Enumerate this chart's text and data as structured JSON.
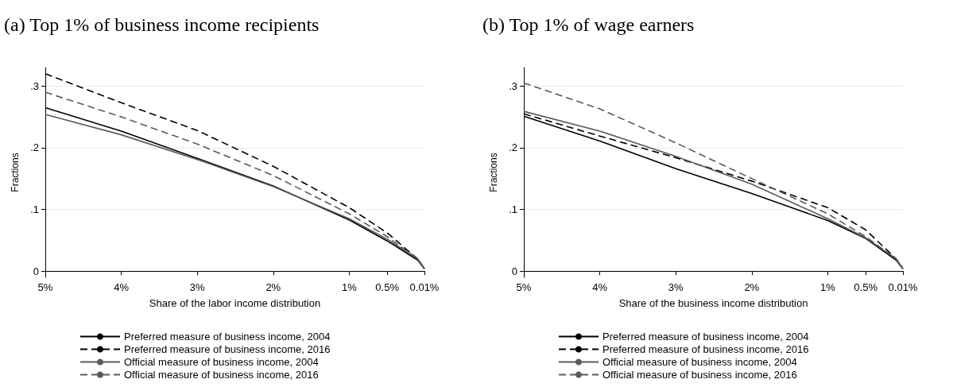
{
  "chart_data": [
    {
      "type": "line",
      "title": "(a) Top 1% of business income recipients",
      "xlabel": "Share of the labor income distribution",
      "ylabel": "Fractions",
      "x": [
        5,
        4,
        3,
        2,
        1,
        0.5,
        0.1,
        0.01
      ],
      "xlim": [
        5,
        0.01
      ],
      "xticks": [
        {
          "value": 5,
          "label": "5%"
        },
        {
          "value": 4,
          "label": "4%"
        },
        {
          "value": 3,
          "label": "3%"
        },
        {
          "value": 2,
          "label": "2%"
        },
        {
          "value": 1,
          "label": "1%"
        },
        {
          "value": 0.5,
          "label": "0.5%"
        },
        {
          "value": 0.01,
          "label": "0.01%"
        }
      ],
      "ylim": [
        -0.01,
        0.33
      ],
      "yticks": [
        0,
        {
          "value": 0.1,
          "label": ".1"
        },
        {
          "value": 0.2,
          "label": ".2"
        },
        {
          "value": 0.3,
          "label": ".3"
        }
      ],
      "grid": "y",
      "legend": "bottom",
      "marker": "none",
      "series": [
        {
          "name": "Preferred measure of business income, 2004",
          "color": "#000000",
          "line_style": "solid",
          "values": [
            0.265,
            0.227,
            0.183,
            0.138,
            0.083,
            0.049,
            0.018,
            0.004
          ]
        },
        {
          "name": "Preferred measure of business income, 2016",
          "color": "#000000",
          "line_style": "dashed",
          "values": [
            0.32,
            0.273,
            0.228,
            0.17,
            0.103,
            0.062,
            0.02,
            0.004
          ]
        },
        {
          "name": "Official measure of business income, 2004",
          "color": "#5a5a5a",
          "line_style": "solid",
          "values": [
            0.254,
            0.221,
            0.181,
            0.137,
            0.085,
            0.052,
            0.02,
            0.004
          ]
        },
        {
          "name": "Official measure of business income, 2016",
          "color": "#5a5a5a",
          "line_style": "dashed",
          "values": [
            0.29,
            0.25,
            0.206,
            0.155,
            0.093,
            0.056,
            0.02,
            0.004
          ]
        }
      ]
    },
    {
      "type": "line",
      "title": "(b) Top 1% of wage earners",
      "xlabel": "Share of the business income distribution",
      "ylabel": "Fractions",
      "x": [
        5,
        4,
        3,
        2,
        1,
        0.5,
        0.1,
        0.01
      ],
      "xlim": [
        5,
        0.01
      ],
      "xticks": [
        {
          "value": 5,
          "label": "5%"
        },
        {
          "value": 4,
          "label": "4%"
        },
        {
          "value": 3,
          "label": "3%"
        },
        {
          "value": 2,
          "label": "2%"
        },
        {
          "value": 1,
          "label": "1%"
        },
        {
          "value": 0.5,
          "label": "0.5%"
        },
        {
          "value": 0.01,
          "label": "0.01%"
        }
      ],
      "ylim": [
        -0.01,
        0.33
      ],
      "yticks": [
        0,
        {
          "value": 0.1,
          "label": ".1"
        },
        {
          "value": 0.2,
          "label": ".2"
        },
        {
          "value": 0.3,
          "label": ".3"
        }
      ],
      "grid": "y",
      "legend": "bottom",
      "marker": "none",
      "series": [
        {
          "name": "Preferred measure of business income, 2004",
          "color": "#000000",
          "line_style": "solid",
          "values": [
            0.251,
            0.211,
            0.166,
            0.126,
            0.082,
            0.053,
            0.018,
            0.004
          ]
        },
        {
          "name": "Preferred measure of business income, 2016",
          "color": "#000000",
          "line_style": "dashed",
          "values": [
            0.255,
            0.219,
            0.184,
            0.146,
            0.103,
            0.067,
            0.02,
            0.004
          ]
        },
        {
          "name": "Official measure of business income, 2004",
          "color": "#5a5a5a",
          "line_style": "solid",
          "values": [
            0.259,
            0.227,
            0.186,
            0.141,
            0.085,
            0.054,
            0.02,
            0.004
          ]
        },
        {
          "name": "Official measure of business income, 2016",
          "color": "#5a5a5a",
          "line_style": "dashed",
          "values": [
            0.305,
            0.263,
            0.208,
            0.15,
            0.093,
            0.056,
            0.02,
            0.004
          ]
        }
      ]
    }
  ]
}
